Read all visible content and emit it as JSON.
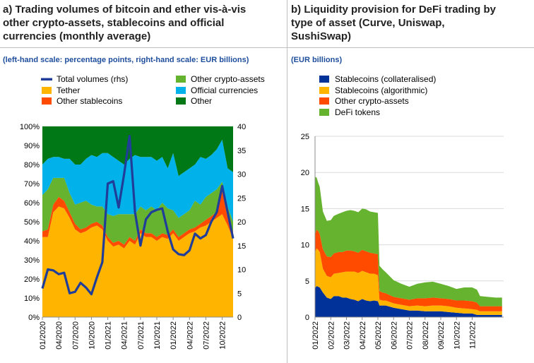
{
  "panel_a": {
    "title_line1": "a) Trading volumes of bitcoin and ether vis-à-vis",
    "title_line2": "other crypto-assets, stablecoins and official",
    "title_line3": "currencies (monthly average)",
    "scale_note": "(left-hand scale: percentage points, right-hand scale: EUR billions)"
  },
  "panel_b": {
    "title_line1": "b) Liquidity provision for DeFi trading by",
    "title_line2": "type of asset (Curve, Uniswap,",
    "title_line3": "SushiSwap)",
    "scale_note": "(EUR billions)"
  },
  "chart_data": [
    {
      "type": "area",
      "stacking": "percent",
      "categories": [
        "01/2020",
        "02/2020",
        "03/2020",
        "04/2020",
        "05/2020",
        "06/2020",
        "07/2020",
        "08/2020",
        "09/2020",
        "10/2020",
        "11/2020",
        "12/2020",
        "01/2021",
        "02/2021",
        "03/2021",
        "04/2021",
        "05/2021",
        "06/2021",
        "07/2021",
        "08/2021",
        "09/2021",
        "10/2021",
        "11/2021",
        "12/2021",
        "01/2022",
        "02/2022",
        "03/2022",
        "04/2022",
        "05/2022",
        "06/2022",
        "07/2022",
        "08/2022",
        "09/2022",
        "10/2022",
        "11/2022",
        "12/2022"
      ],
      "x_tick_labels": [
        "01/2020",
        "04/2020",
        "07/2020",
        "10/2020",
        "01/2021",
        "04/2021",
        "07/2021",
        "10/2021",
        "01/2022",
        "04/2022",
        "07/2022",
        "10/2022"
      ],
      "y_ticks_left": [
        "0%",
        "10%",
        "20%",
        "30%",
        "40%",
        "50%",
        "60%",
        "70%",
        "80%",
        "90%",
        "100%"
      ],
      "y_ticks_right": [
        "0",
        "5",
        "10",
        "15",
        "20",
        "25",
        "30",
        "35",
        "40"
      ],
      "ylim_left": [
        0,
        100
      ],
      "ylim_right": [
        0,
        40
      ],
      "legend": [
        {
          "name": "Total volumes (rhs)",
          "color": "#1f3d99",
          "kind": "line"
        },
        {
          "name": "Tether",
          "color": "#ffb400",
          "kind": "area"
        },
        {
          "name": "Other stablecoins",
          "color": "#ff4b00",
          "kind": "area"
        },
        {
          "name": "Other crypto-assets",
          "color": "#65b32e",
          "kind": "area"
        },
        {
          "name": "Official currencies",
          "color": "#00b1ea",
          "kind": "area"
        },
        {
          "name": "Other",
          "color": "#007816",
          "kind": "area"
        }
      ],
      "series": [
        {
          "name": "Tether",
          "color": "#ffb400",
          "values": [
            42,
            42,
            55,
            58,
            57,
            52,
            46,
            44,
            45,
            47,
            48,
            46,
            40,
            37,
            38,
            36,
            40,
            38,
            44,
            42,
            42,
            40,
            42,
            41,
            44,
            40,
            42,
            44,
            45,
            47,
            48,
            50,
            52,
            54,
            48,
            41
          ]
        },
        {
          "name": "Other stablecoins",
          "color": "#ff4b00",
          "values": [
            3,
            4,
            4,
            5,
            4,
            3,
            3,
            2,
            2,
            2,
            2,
            2,
            2,
            2,
            2,
            2,
            2,
            2,
            2,
            2,
            2,
            2,
            2,
            2,
            2,
            2,
            2,
            2,
            2,
            2,
            3,
            3,
            3,
            12,
            4,
            4
          ]
        },
        {
          "name": "Other crypto-assets",
          "color": "#65b32e",
          "values": [
            19,
            21,
            14,
            10,
            12,
            10,
            10,
            14,
            14,
            10,
            8,
            10,
            12,
            14,
            14,
            16,
            12,
            14,
            12,
            12,
            14,
            14,
            16,
            14,
            10,
            10,
            10,
            10,
            14,
            10,
            12,
            12,
            12,
            5,
            6,
            5
          ]
        },
        {
          "name": "Official currencies",
          "color": "#00b1ea",
          "values": [
            16,
            16,
            11,
            11,
            10,
            18,
            21,
            20,
            22,
            26,
            26,
            28,
            32,
            31,
            28,
            26,
            29,
            31,
            26,
            28,
            26,
            26,
            24,
            21,
            30,
            22,
            22,
            22,
            19,
            25,
            20,
            20,
            21,
            22,
            20,
            26
          ]
        },
        {
          "name": "Other",
          "color": "#007816",
          "values": [
            20,
            17,
            16,
            16,
            17,
            17,
            20,
            20,
            17,
            15,
            16,
            14,
            14,
            16,
            18,
            20,
            17,
            15,
            16,
            16,
            16,
            18,
            16,
            22,
            14,
            26,
            24,
            22,
            20,
            16,
            17,
            15,
            12,
            7,
            22,
            24
          ]
        }
      ],
      "line_series": {
        "name": "Total volumes (rhs)",
        "color": "#1f3d99",
        "values": [
          6,
          10,
          9.8,
          9,
          9.3,
          5,
          5.3,
          7.2,
          6.2,
          4.8,
          8.3,
          11.5,
          28,
          28.5,
          23,
          30,
          38,
          22,
          15,
          20.5,
          22,
          22.5,
          22.8,
          18,
          14.2,
          13.2,
          13,
          14,
          17.5,
          16.5,
          17.2,
          20,
          22,
          27.5,
          22,
          16.5
        ]
      }
    },
    {
      "type": "area",
      "stacking": "normal",
      "x_tick_labels": [
        "01/2022",
        "02/2022",
        "03/2022",
        "04/2022",
        "05/2022",
        "06/2022",
        "07/2022",
        "08/2022",
        "09/2022",
        "10/2022",
        "11/2022"
      ],
      "y_ticks": [
        "0",
        "5",
        "10",
        "15",
        "20",
        "25"
      ],
      "ylim": [
        0,
        25
      ],
      "legend": [
        {
          "name": "Stablecoins (collateralised)",
          "color": "#003299"
        },
        {
          "name": "Stablecoins (algorithmic)",
          "color": "#ffb400"
        },
        {
          "name": "Other crypto-assets",
          "color": "#ff4b00"
        },
        {
          "name": "DeFi tokens",
          "color": "#65b32e"
        }
      ],
      "x": [
        0,
        0.1,
        0.2,
        0.3,
        0.5,
        0.75,
        1,
        1.2,
        1.5,
        1.75,
        2,
        2.25,
        2.5,
        2.75,
        3,
        3.25,
        3.5,
        3.75,
        4,
        4.1,
        4.3,
        4.5,
        5,
        5.5,
        6,
        6.5,
        7,
        7.5,
        8,
        8.5,
        9,
        9.5,
        10,
        10.3,
        10.5,
        11,
        11.5,
        11.9
      ],
      "series": [
        {
          "name": "Stablecoins (collateralised)",
          "color": "#003299",
          "values": [
            4.0,
            4.3,
            4.2,
            4.1,
            3.4,
            2.7,
            2.5,
            2.9,
            2.9,
            2.7,
            2.7,
            2.5,
            2.4,
            2.2,
            2.5,
            2.3,
            2.2,
            2.3,
            2.2,
            1.6,
            1.6,
            1.6,
            1.3,
            1.1,
            0.9,
            0.9,
            0.8,
            0.8,
            0.8,
            0.7,
            0.6,
            0.5,
            0.5,
            0.3,
            0.3,
            0.3,
            0.3,
            0.3
          ]
        },
        {
          "name": "Stablecoins (algorithmic)",
          "color": "#ffb400",
          "values": [
            5.0,
            5.2,
            5.1,
            4.9,
            3.3,
            3.0,
            3.0,
            3.1,
            3.2,
            3.5,
            3.6,
            3.8,
            3.9,
            3.9,
            3.9,
            3.9,
            3.8,
            3.7,
            3.6,
            0.8,
            0.7,
            0.7,
            0.6,
            0.6,
            0.6,
            0.7,
            0.7,
            0.8,
            0.8,
            0.8,
            0.7,
            0.7,
            0.6,
            0.7,
            0.5,
            0.5,
            0.5,
            0.5
          ]
        },
        {
          "name": "Other crypto-assets",
          "color": "#ff4b00",
          "values": [
            2.4,
            2.6,
            2.6,
            2.5,
            2.7,
            2.7,
            2.8,
            2.8,
            2.9,
            2.8,
            2.9,
            2.9,
            2.8,
            2.8,
            2.9,
            2.9,
            2.9,
            2.8,
            2.9,
            1.2,
            1.1,
            1.0,
            0.9,
            0.9,
            0.9,
            1.0,
            1.1,
            1.1,
            1.0,
            1.0,
            1.0,
            1.1,
            1.1,
            1.0,
            0.7,
            0.7,
            0.7,
            0.7
          ]
        },
        {
          "name": "DeFi tokens",
          "color": "#65b32e",
          "values": [
            8.0,
            7.2,
            6.7,
            6.5,
            5.2,
            4.9,
            5.1,
            5.2,
            5.3,
            5.5,
            5.5,
            5.6,
            5.6,
            5.6,
            5.7,
            5.8,
            5.7,
            5.7,
            5.7,
            3.5,
            3.2,
            2.9,
            2.3,
            2.0,
            1.8,
            2.0,
            2.2,
            2.2,
            2.0,
            1.8,
            1.6,
            1.8,
            1.9,
            1.8,
            1.4,
            1.3,
            1.2,
            1.2
          ]
        }
      ]
    }
  ]
}
